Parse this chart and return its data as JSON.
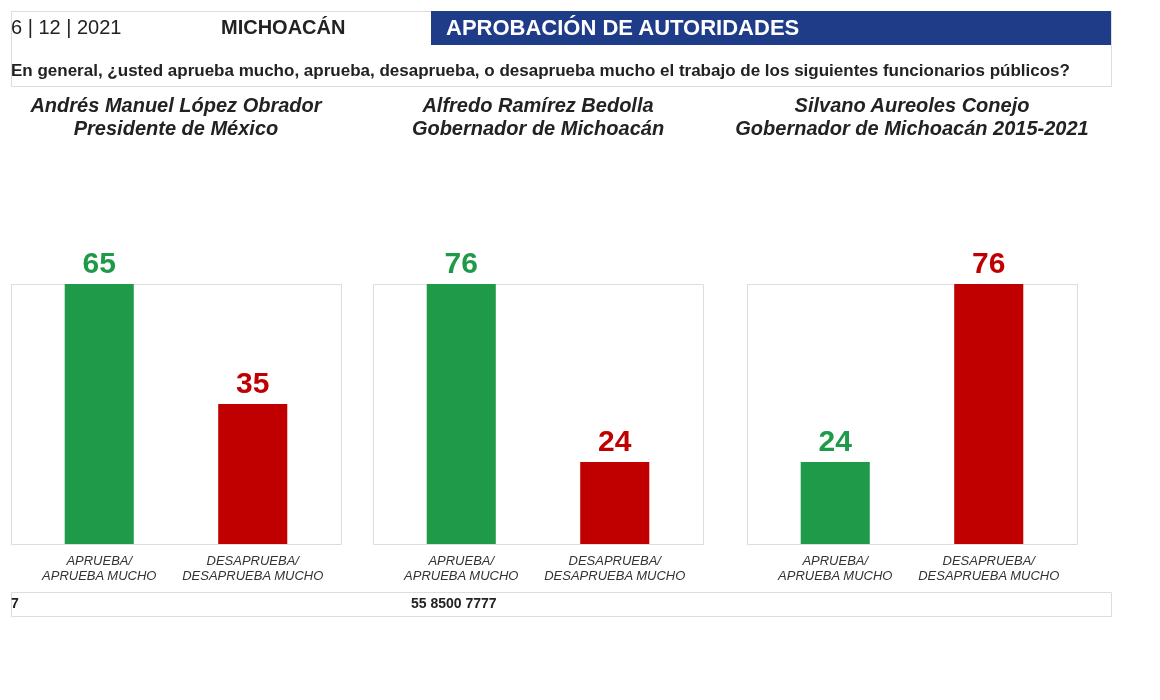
{
  "chart_data": [
    {
      "type": "other",
      "title": "APROBACIÓN DE AUTORIDADES",
      "subtitle": "En general, ¿usted aprueba mucho, aprueba, desaprueba, o desaprueba mucho el trabajo de los siguientes funcionarios públicos?",
      "annotations": [
        "6 | 12 | 2021",
        "MICHOACÁN",
        "7",
        "55 8500 7777"
      ]
    },
    {
      "type": "bar",
      "title": "Andrés Manuel López Obrador",
      "subtitle": "Presidente de México",
      "categories": [
        "APRUEBA/\nAPRUEBA MUCHO",
        "DESAPRUEBA/\nDESAPRUEBA MUCHO"
      ],
      "values": [
        65,
        35
      ],
      "colors": [
        "#1e9a48",
        "#c00000"
      ],
      "data_labels": true,
      "tick_labels": "x"
    },
    {
      "type": "bar",
      "title": "Alfredo Ramírez Bedolla",
      "subtitle": "Gobernador de Michoacán",
      "categories": [
        "APRUEBA/\nAPRUEBA MUCHO",
        "DESAPRUEBA/\nDESAPRUEBA MUCHO"
      ],
      "values": [
        76,
        24
      ],
      "colors": [
        "#1e9a48",
        "#c00000"
      ],
      "data_labels": true,
      "tick_labels": "x"
    },
    {
      "type": "bar",
      "title": "Silvano Aureoles Conejo",
      "subtitle": "Gobernador de Michoacán 2015-2021",
      "categories": [
        "APRUEBA/\nAPRUEBA MUCHO",
        "DESAPRUEBA/\nDESAPRUEBA MUCHO"
      ],
      "values": [
        24,
        76
      ],
      "colors": [
        "#1e9a48",
        "#c00000"
      ],
      "data_labels": true,
      "tick_labels": "x"
    }
  ]
}
